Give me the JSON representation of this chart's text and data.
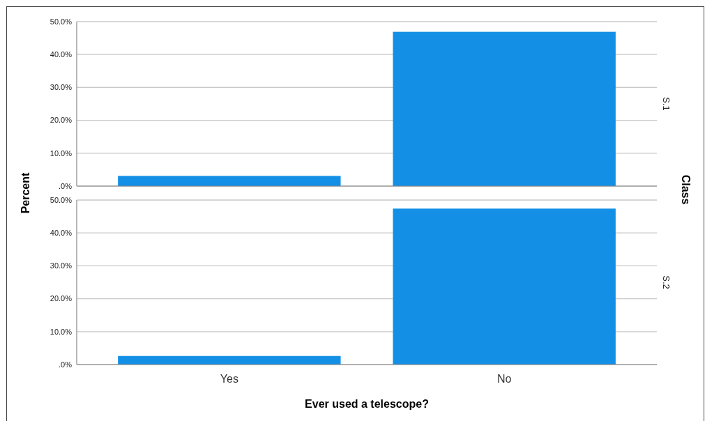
{
  "chart_data": [
    {
      "type": "bar",
      "title": "S.1",
      "ylabel": "Percent",
      "annotations": [
        "Class"
      ],
      "categories": [
        null,
        null
      ],
      "values": [
        3.1,
        46.9
      ],
      "color": "#1390e6",
      "ylim": [
        0,
        50
      ],
      "yticks": [
        {
          "value": 0,
          "label": ".0%"
        },
        {
          "value": 10,
          "label": "10.0%"
        },
        {
          "value": 20,
          "label": "20.0%"
        },
        {
          "value": 30,
          "label": "30.0%"
        },
        {
          "value": 40,
          "label": "40.0%"
        },
        {
          "value": 50,
          "label": "50.0%"
        }
      ],
      "grid": "y",
      "tick_labels": "y"
    },
    {
      "type": "bar",
      "title": "S.2",
      "xlabel": "Ever used a telescope?",
      "categories": [
        "Yes",
        "No"
      ],
      "values": [
        2.6,
        47.4
      ],
      "color": "#1390e6",
      "ylim": [
        0,
        50
      ],
      "yticks": [
        {
          "value": 0,
          "label": ".0%"
        },
        {
          "value": 10,
          "label": "10.0%"
        },
        {
          "value": 20,
          "label": "20.0%"
        },
        {
          "value": 30,
          "label": "30.0%"
        },
        {
          "value": 40,
          "label": "40.0%"
        },
        {
          "value": 50,
          "label": "50.0%"
        }
      ],
      "grid": "y"
    }
  ]
}
